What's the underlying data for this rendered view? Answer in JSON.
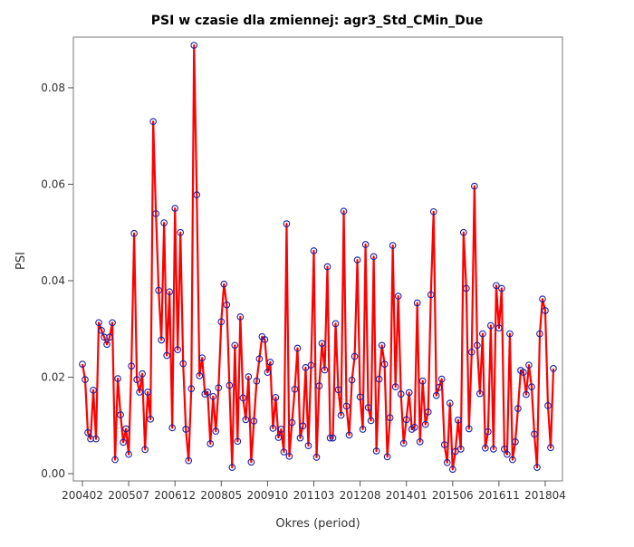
{
  "chart_data": {
    "type": "line",
    "title": "PSI w czasie dla zmiennej: agr3_Std_CMin_Due",
    "xlabel": "Okres (period)",
    "ylabel": "PSI",
    "ylim": [
      -0.0015,
      0.0905
    ],
    "yticks": [
      0.0,
      0.02,
      0.04,
      0.06,
      0.08
    ],
    "ytick_labels": [
      "0.00",
      "0.02",
      "0.04",
      "0.06",
      "0.08"
    ],
    "xtick_labels": [
      "200402",
      "200507",
      "200612",
      "200805",
      "200910",
      "201103",
      "201208",
      "201401",
      "201506",
      "201611",
      "201804"
    ],
    "xtick_indices": [
      0,
      17,
      34,
      51,
      68,
      85,
      102,
      119,
      136,
      153,
      170
    ],
    "grid": false,
    "legend": "none",
    "line_color": "#ff0000",
    "marker_color": "#1f1f9f",
    "values": [
      0.0227,
      0.0195,
      0.0085,
      0.0072,
      0.0173,
      0.0072,
      0.0313,
      0.0297,
      0.0283,
      0.0268,
      0.0283,
      0.0313,
      0.0029,
      0.0197,
      0.0122,
      0.0065,
      0.0093,
      0.004,
      0.0223,
      0.0498,
      0.0195,
      0.0169,
      0.0207,
      0.005,
      0.0169,
      0.0113,
      0.073,
      0.0539,
      0.038,
      0.0277,
      0.052,
      0.0245,
      0.0377,
      0.0095,
      0.055,
      0.0257,
      0.05,
      0.0228,
      0.0092,
      0.0027,
      0.0176,
      0.0888,
      0.0578,
      0.0203,
      0.024,
      0.0165,
      0.0169,
      0.0062,
      0.016,
      0.0088,
      0.0178,
      0.0315,
      0.0393,
      0.035,
      0.0183,
      0.0013,
      0.0266,
      0.0067,
      0.0325,
      0.0157,
      0.0112,
      0.0201,
      0.0024,
      0.0109,
      0.0192,
      0.0238,
      0.0284,
      0.0278,
      0.021,
      0.0231,
      0.0094,
      0.0158,
      0.0075,
      0.0092,
      0.0045,
      0.0518,
      0.0036,
      0.0106,
      0.0175,
      0.026,
      0.0074,
      0.0099,
      0.022,
      0.0058,
      0.0225,
      0.0462,
      0.0034,
      0.0182,
      0.027,
      0.0215,
      0.0429,
      0.0074,
      0.0074,
      0.0311,
      0.0174,
      0.0121,
      0.0544,
      0.014,
      0.008,
      0.0194,
      0.0243,
      0.0443,
      0.0159,
      0.0092,
      0.0475,
      0.0137,
      0.011,
      0.045,
      0.0047,
      0.0196,
      0.0266,
      0.0227,
      0.0035,
      0.0116,
      0.0473,
      0.018,
      0.0368,
      0.0165,
      0.0063,
      0.0112,
      0.0168,
      0.0092,
      0.0096,
      0.0354,
      0.0066,
      0.0192,
      0.0102,
      0.0128,
      0.0371,
      0.0543,
      0.0162,
      0.0179,
      0.0196,
      0.006,
      0.0023,
      0.0146,
      0.0009,
      0.0046,
      0.0111,
      0.0051,
      0.05,
      0.0384,
      0.0093,
      0.0252,
      0.0596,
      0.0266,
      0.0166,
      0.029,
      0.0053,
      0.0087,
      0.0307,
      0.0051,
      0.039,
      0.0302,
      0.0384,
      0.0051,
      0.004,
      0.029,
      0.0029,
      0.0066,
      0.0135,
      0.0214,
      0.021,
      0.0164,
      0.0225,
      0.018,
      0.0082,
      0.0013,
      0.029,
      0.0362,
      0.0338,
      0.0141,
      0.0054,
      0.0218
    ]
  }
}
